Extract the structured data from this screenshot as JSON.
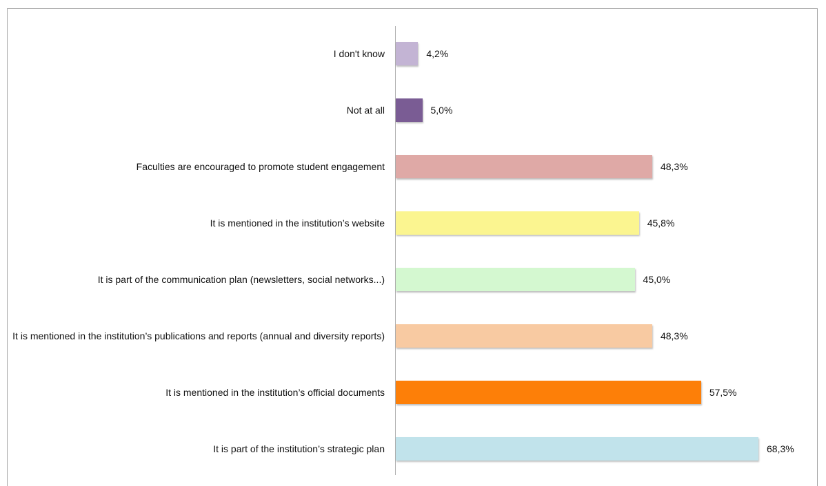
{
  "chart_data": {
    "type": "bar",
    "orientation": "horizontal",
    "categories": [
      "I don't know",
      "Not at all",
      "Faculties are encouraged to promote student engagement",
      "It is mentioned in the institution’s website",
      "It is part of the communication plan (newsletters, social networks...)",
      "It is mentioned in the institution’s publications and reports (annual and diversity reports)",
      "It is mentioned in the institution’s official documents",
      "It is part of the institution’s strategic plan"
    ],
    "values": [
      4.2,
      5.0,
      48.3,
      45.8,
      45.0,
      48.3,
      57.5,
      68.3
    ],
    "value_labels": [
      "4,2%",
      "5,0%",
      "48,3%",
      "45,8%",
      "45,0%",
      "48,3%",
      "57,5%",
      "68,3%"
    ],
    "colors": [
      "#c3b4d4",
      "#7a5c94",
      "#dfa9a6",
      "#fbf590",
      "#d4f8d0",
      "#f8caa2",
      "#fd7f08",
      "#c1e3eb"
    ]
  }
}
